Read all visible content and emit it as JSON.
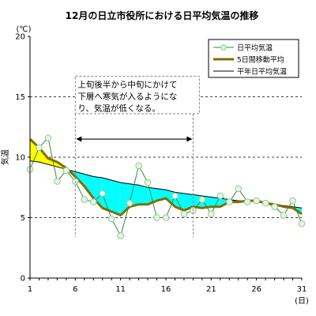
{
  "chart_data": {
    "type": "line",
    "title": "12月の日立市役所における日平均気温の推移",
    "ylabel": "気温",
    "yunit": "(℃)",
    "xunit": "(日)",
    "xlim": [
      1,
      31
    ],
    "ylim": [
      0,
      20
    ],
    "x_ticks": [
      "1",
      "6",
      "11",
      "16",
      "21",
      "26",
      "31"
    ],
    "y_ticks": [
      "0",
      "5",
      "10",
      "15",
      "20"
    ],
    "grid": "horizontal dashed",
    "legend_position": "top-right",
    "x": [
      1,
      2,
      3,
      4,
      5,
      6,
      7,
      8,
      9,
      10,
      11,
      12,
      13,
      14,
      15,
      16,
      17,
      18,
      19,
      20,
      21,
      22,
      23,
      24,
      25,
      26,
      27,
      28,
      29,
      30,
      31
    ],
    "series": [
      {
        "name": "日平均気温",
        "color": "#2e8b3a",
        "values": [
          9.0,
          10.8,
          11.6,
          8.0,
          8.9,
          8.0,
          6.5,
          6.3,
          7.0,
          4.9,
          3.5,
          6.2,
          9.3,
          7.9,
          5.0,
          5.0,
          6.8,
          5.3,
          5.6,
          6.5,
          5.3,
          6.8,
          6.3,
          7.4,
          6.3,
          6.4,
          6.2,
          5.9,
          5.2,
          6.4,
          4.5
        ]
      },
      {
        "name": "5日間移動平均",
        "color": "#7f6f00",
        "values": [
          11.5,
          10.8,
          9.9,
          9.6,
          9.1,
          8.4,
          7.6,
          6.6,
          5.8,
          5.5,
          5.2,
          5.9,
          6.1,
          6.1,
          6.4,
          6.6,
          5.9,
          5.6,
          5.9,
          5.8,
          5.9,
          5.9,
          6.3,
          6.3,
          6.4,
          6.4,
          6.2,
          6.1,
          5.9,
          5.8,
          5.3
        ]
      },
      {
        "name": "平年日平均気温",
        "color": "#000000",
        "values": [
          9.7,
          9.6,
          9.4,
          9.2,
          9.0,
          8.8,
          8.6,
          8.4,
          8.3,
          8.1,
          7.9,
          7.8,
          7.7,
          7.5,
          7.4,
          7.3,
          7.1,
          7.0,
          6.9,
          6.8,
          6.7,
          6.6,
          6.5,
          6.4,
          6.4,
          6.3,
          6.2,
          6.1,
          6.0,
          5.9,
          5.8
        ]
      }
    ],
    "fill_above_color": "#ffff00",
    "fill_below_color": "#00ffff",
    "annotation": {
      "lines": [
        "上旬後半から中旬にかけて",
        "下層へ寒気が入るようにな",
        "り、気温が低くなる。"
      ],
      "range": [
        6,
        19
      ]
    }
  }
}
